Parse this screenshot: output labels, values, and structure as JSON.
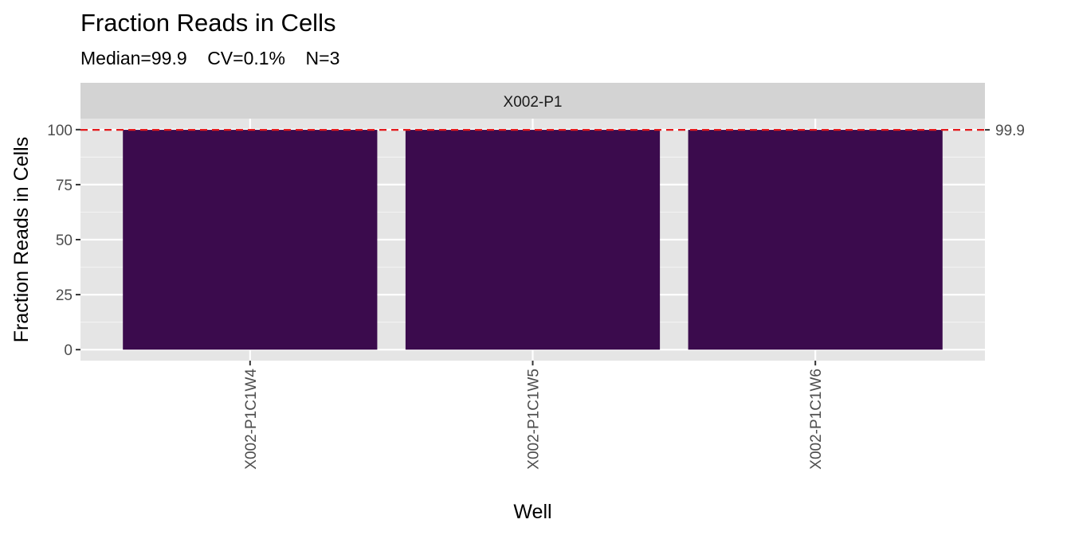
{
  "chart_data": {
    "type": "bar",
    "title": "Fraction Reads in Cells",
    "subtitle": "Median=99.9    CV=0.1%    N=3",
    "facet_label": "X002-P1",
    "xlabel": "Well",
    "ylabel": "Fraction Reads in Cells",
    "categories": [
      "X002-P1C1W4",
      "X002-P1C1W5",
      "X002-P1C1W6"
    ],
    "values": [
      99.9,
      99.9,
      99.9
    ],
    "ylim": [
      -5,
      105
    ],
    "yticks": [
      0,
      25,
      50,
      75,
      100
    ],
    "reference_line": {
      "value": 99.9,
      "label": "99.9",
      "color": "#e41a1c",
      "style": "dashed"
    },
    "bar_color": "#3b0b4d",
    "panel_background": "#e5e5e5",
    "strip_background": "#d3d3d3",
    "grid": true
  }
}
